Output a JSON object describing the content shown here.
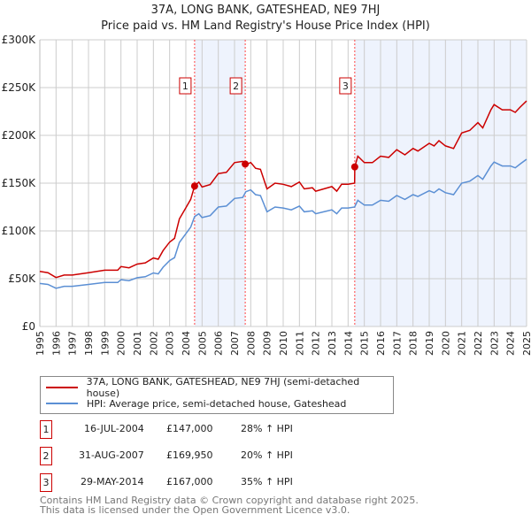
{
  "title": "37A, LONG BANK, GATESHEAD, NE9 7HJ",
  "subtitle": "Price paid vs. HM Land Registry's House Price Index (HPI)",
  "chart_data": {
    "type": "line",
    "xlim": [
      1995,
      2025
    ],
    "ylim": [
      0,
      300000
    ],
    "yticks": [
      0,
      50000,
      100000,
      150000,
      200000,
      250000,
      300000
    ],
    "ytick_labels": [
      "£0",
      "£50K",
      "£100K",
      "£150K",
      "£200K",
      "£250K",
      "£300K"
    ],
    "xticks": [
      "1995",
      "1996",
      "1997",
      "1998",
      "1999",
      "2000",
      "2001",
      "2002",
      "2003",
      "2004",
      "2005",
      "2006",
      "2007",
      "2008",
      "2009",
      "2010",
      "2011",
      "2012",
      "2013",
      "2014",
      "2015",
      "2016",
      "2017",
      "2018",
      "2019",
      "2020",
      "2021",
      "2022",
      "2023",
      "2024",
      "2025"
    ],
    "grid": true,
    "colors": {
      "property": "#cc0000",
      "hpi": "#5b8fd4",
      "shade": "#eef3fd"
    },
    "shaded_ranges": [
      [
        2004.54,
        2007.66
      ],
      [
        2014.41,
        2025
      ]
    ],
    "series": [
      {
        "name": "37A, LONG BANK, GATESHEAD, NE9 7HJ (semi-detached house)",
        "key": "property",
        "x": [
          1995,
          1995.5,
          1996,
          1996.5,
          1997,
          1998,
          1999,
          1999.8,
          2000,
          2000.5,
          2001,
          2001.5,
          2002,
          2002.3,
          2002.6,
          2003,
          2003.3,
          2003.6,
          2004,
          2004.3,
          2004.54,
          2004.8,
          2005,
          2005.5,
          2006,
          2006.5,
          2007,
          2007.5,
          2007.66,
          2007.7,
          2008,
          2008.3,
          2008.6,
          2009,
          2009.5,
          2010,
          2010.5,
          2011,
          2011.3,
          2011.8,
          2012,
          2012.5,
          2013,
          2013.3,
          2013.6,
          2014,
          2014.4,
          2014.41,
          2014.6,
          2015,
          2015.5,
          2016,
          2016.5,
          2017,
          2017.5,
          2018,
          2018.3,
          2019,
          2019.3,
          2019.6,
          2020,
          2020.5,
          2021,
          2021.5,
          2022,
          2022.3,
          2022.8,
          2023,
          2023.5,
          2024,
          2024.3,
          2024.6,
          2025
        ],
        "y": [
          57600,
          56300,
          51200,
          53800,
          53800,
          56300,
          58900,
          58900,
          62700,
          61400,
          65300,
          66600,
          71700,
          70400,
          79400,
          88300,
          92200,
          112600,
          124200,
          133100,
          147000,
          151000,
          145900,
          148500,
          160000,
          161300,
          171500,
          172800,
          169950,
          169200,
          171600,
          165600,
          164400,
          144000,
          150000,
          148800,
          146400,
          151200,
          144000,
          145200,
          141600,
          144000,
          146400,
          141600,
          148800,
          148800,
          150000,
          167000,
          178200,
          171500,
          171500,
          178200,
          176900,
          185000,
          179600,
          186300,
          183600,
          191700,
          189000,
          194400,
          189000,
          186300,
          202500,
          205200,
          213300,
          207900,
          226800,
          232200,
          226800,
          226800,
          224100,
          229500,
          236000
        ]
      },
      {
        "name": "HPI: Average price, semi-detached house, Gateshead",
        "key": "hpi",
        "x": [
          1995,
          1995.5,
          1996,
          1996.5,
          1997,
          1998,
          1999,
          1999.8,
          2000,
          2000.5,
          2001,
          2001.5,
          2002,
          2002.3,
          2002.6,
          2003,
          2003.3,
          2003.6,
          2004,
          2004.3,
          2004.54,
          2004.8,
          2005,
          2005.5,
          2006,
          2006.5,
          2007,
          2007.5,
          2007.7,
          2008,
          2008.3,
          2008.6,
          2009,
          2009.5,
          2010,
          2010.5,
          2011,
          2011.3,
          2011.8,
          2012,
          2012.5,
          2013,
          2013.3,
          2013.6,
          2014,
          2014.4,
          2014.6,
          2015,
          2015.5,
          2016,
          2016.5,
          2017,
          2017.5,
          2018,
          2018.3,
          2019,
          2019.3,
          2019.6,
          2020,
          2020.5,
          2021,
          2021.5,
          2022,
          2022.3,
          2022.8,
          2023,
          2023.5,
          2024,
          2024.3,
          2024.6,
          2025
        ],
        "y": [
          45000,
          44000,
          40000,
          42000,
          42000,
          44000,
          46000,
          46000,
          49000,
          48000,
          51000,
          52000,
          56000,
          55000,
          62000,
          69000,
          72000,
          88000,
          97000,
          104000,
          115000,
          118000,
          114000,
          116000,
          125000,
          126000,
          134000,
          135000,
          141000,
          143000,
          138000,
          137000,
          120000,
          125000,
          124000,
          122000,
          126000,
          120000,
          121000,
          118000,
          120000,
          122000,
          118000,
          124000,
          124000,
          125000,
          132000,
          127000,
          127000,
          132000,
          131000,
          137000,
          133000,
          138000,
          136000,
          142000,
          140000,
          144000,
          140000,
          138000,
          150000,
          152000,
          158000,
          154000,
          168000,
          172000,
          168000,
          168000,
          166000,
          170000,
          175000
        ]
      }
    ],
    "sales": [
      {
        "label": "1",
        "x": 2004.54,
        "price": 147000,
        "date": "16-JUL-2004",
        "price_text": "£147,000",
        "hpi_text": "28% ↑ HPI"
      },
      {
        "label": "2",
        "x": 2007.66,
        "price": 169950,
        "date": "31-AUG-2007",
        "price_text": "£169,950",
        "hpi_text": "20% ↑ HPI"
      },
      {
        "label": "3",
        "x": 2014.41,
        "price": 167000,
        "date": "29-MAY-2014",
        "price_text": "£167,000",
        "hpi_text": "35% ↑ HPI"
      }
    ]
  },
  "legend": {
    "property": "37A, LONG BANK, GATESHEAD, NE9 7HJ (semi-detached house)",
    "hpi": "HPI: Average price, semi-detached house, Gateshead"
  },
  "footer": {
    "line1": "Contains HM Land Registry data © Crown copyright and database right 2025.",
    "line2": "This data is licensed under the Open Government Licence v3.0."
  }
}
